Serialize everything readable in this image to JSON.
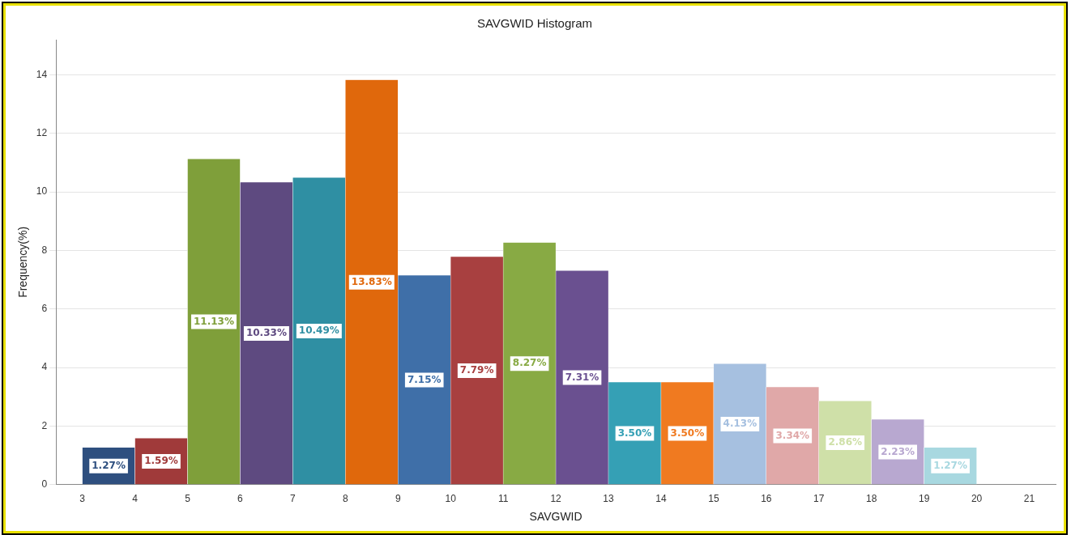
{
  "chart_data": {
    "type": "histogram",
    "title": "SAVGWID Histogram",
    "xlabel": "SAVGWID",
    "ylabel": "Frequency(%)",
    "bins": [
      3,
      4,
      5,
      6,
      7,
      8,
      9,
      10,
      11,
      12,
      13,
      14,
      15,
      16,
      17,
      18,
      19,
      20,
      21
    ],
    "values": [
      1.27,
      1.59,
      11.13,
      10.33,
      10.49,
      13.83,
      7.15,
      7.79,
      8.27,
      7.31,
      3.5,
      3.5,
      4.13,
      3.34,
      2.86,
      2.23,
      1.27,
      0
    ],
    "value_labels": [
      "1.27%",
      "1.59%",
      "11.13%",
      "10.33%",
      "10.49%",
      "13.83%",
      "7.15%",
      "7.79%",
      "8.27%",
      "7.31%",
      "3.50%",
      "3.50%",
      "4.13%",
      "3.34%",
      "2.86%",
      "2.23%",
      "1.27%",
      null
    ],
    "colors": [
      "#2e4f7f",
      "#a03a3a",
      "#7f9f3a",
      "#5e4a80",
      "#2f8fa3",
      "#e0680c",
      "#3f6fa8",
      "#a84040",
      "#88aa44",
      "#6a5090",
      "#35a0b5",
      "#f07a20",
      "#a6c0e0",
      "#e0a8a8",
      "#cfe0a8",
      "#b8a8d0",
      "#a8d8e0",
      "#f0a060"
    ],
    "xlim": [
      2.5,
      21.5
    ],
    "xticks": [
      3,
      4,
      5,
      6,
      7,
      8,
      9,
      10,
      11,
      12,
      13,
      14,
      15,
      16,
      17,
      18,
      19,
      20,
      21
    ],
    "ylim": [
      0,
      15.2
    ],
    "yticks": [
      0,
      2,
      4,
      6,
      8,
      10,
      12,
      14
    ],
    "grid": "y",
    "legend": false
  }
}
